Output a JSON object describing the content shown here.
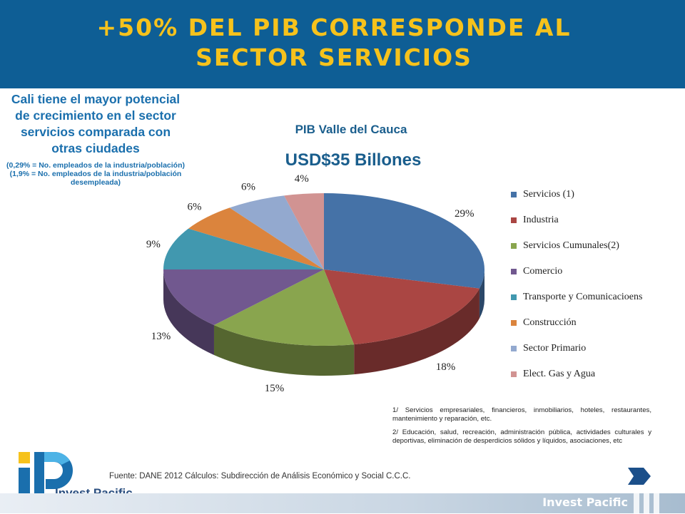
{
  "slide": {
    "title_line1": "+50% DEL PIB CORRESPONDE AL",
    "title_line2": "SECTOR SERVICIOS",
    "cali_heading": "Cali tiene el mayor potencial de crecimiento en el sector servicios comparada con otras ciudades",
    "cali_note_1": "(0,29% = No. empleados de la industria/población)",
    "cali_note_2": "(1,9% = No. empleados de la industria/población desempleada)",
    "footnote_1": "1/ Servicios empresariales, financieros, inmobiliarios, hoteles, restaurantes, mantenimiento y reparación, etc.",
    "footnote_2": "2/ Educación, salud, recreación, administración pública, actividades culturales y deportivas, eliminación de desperdicios sólidos y líquidos, asociaciones, etc",
    "source": "Fuente: DANE  2012 Cálculos: Subdirección de Análisis Económico y Social C.C.C.",
    "logo_text": "Invest Pacific",
    "footer_brand": "Invest Pacific",
    "next_icon": "arrow-right-icon"
  },
  "chart_data": {
    "type": "pie",
    "title": "PIB Valle del Cauca",
    "subtitle": "USD$35 Billones",
    "categories": [
      "Servicios (1)",
      "Industria",
      "Servicios Cumunales(2)",
      "Comercio",
      "Transporte y Comunicacioens",
      "Construcción",
      "Sector Primario",
      "Elect. Gas y Agua"
    ],
    "values": [
      29,
      18,
      15,
      13,
      9,
      6,
      6,
      4
    ],
    "labels": [
      "29%",
      "18%",
      "15%",
      "13%",
      "9%",
      "6%",
      "6%",
      "4%"
    ],
    "colors": [
      "#4572a7",
      "#aa4643",
      "#89a54e",
      "#71588f",
      "#4198af",
      "#db843d",
      "#93a9cf",
      "#d19392"
    ],
    "legend_position": "right",
    "style": "3d"
  }
}
